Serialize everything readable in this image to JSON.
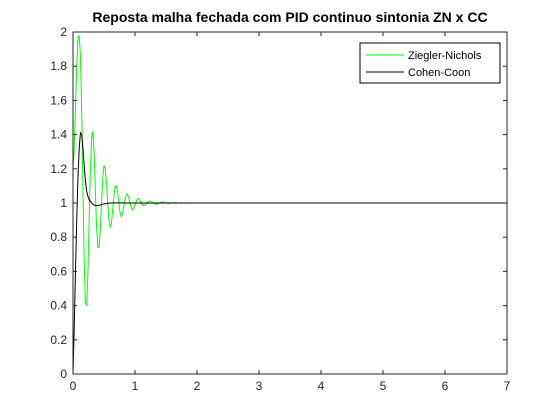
{
  "chart_data": {
    "type": "line",
    "title": "Reposta malha fechada com PID continuo sintonia ZN x CC",
    "xlabel": "",
    "ylabel": "",
    "xlim": [
      0,
      7
    ],
    "ylim": [
      0,
      2
    ],
    "grid": false,
    "legend_position": "top-right",
    "x_ticks": [
      "0",
      "1",
      "2",
      "3",
      "4",
      "5",
      "6",
      "7"
    ],
    "y_ticks": [
      "0",
      "0.2",
      "0.4",
      "0.6",
      "0.8",
      "1",
      "1.2",
      "1.4",
      "1.6",
      "1.8",
      "2"
    ],
    "series": [
      {
        "name": "Ziegler-Nichols",
        "color": "#00ff00",
        "x": [
          0,
          0.02,
          0.04,
          0.06,
          0.08,
          0.1,
          0.12,
          0.14,
          0.16,
          0.18,
          0.2,
          0.22,
          0.24,
          0.26,
          0.28,
          0.3,
          0.32,
          0.34,
          0.36,
          0.38,
          0.4,
          0.42,
          0.44,
          0.46,
          0.48,
          0.5,
          0.52,
          0.54,
          0.56,
          0.58,
          0.6,
          0.62,
          0.64,
          0.66,
          0.68,
          0.7,
          0.72,
          0.74,
          0.76,
          0.78,
          0.8,
          0.82,
          0.84,
          0.86,
          0.88,
          0.9,
          0.92,
          0.94,
          0.96,
          0.98,
          1.0,
          1.02,
          1.04,
          1.06,
          1.08,
          1.1,
          1.12,
          1.14,
          1.16,
          1.18,
          1.2,
          1.22,
          1.24,
          1.26,
          1.28,
          1.3,
          1.32,
          1.34,
          1.36,
          1.38,
          1.4,
          1.42,
          1.44,
          1.46,
          1.48,
          1.5,
          1.52,
          1.54,
          1.56,
          1.58,
          1.6,
          1.62,
          1.64,
          1.66,
          1.68,
          1.7,
          1.72,
          1.74,
          1.76,
          1.78,
          1.8,
          1.82,
          1.84,
          1.86,
          1.88,
          1.9,
          1.92,
          1.94,
          1.96,
          1.98,
          2.0,
          7.0
        ],
        "values": [
          1.2,
          1.32,
          1.56,
          1.8,
          1.96,
          1.98,
          1.86,
          1.54,
          1.1,
          0.66,
          0.42,
          0.4,
          0.58,
          0.9,
          1.18,
          1.38,
          1.42,
          1.3,
          1.08,
          0.86,
          0.74,
          0.74,
          0.84,
          1.0,
          1.14,
          1.22,
          1.2,
          1.12,
          1.0,
          0.9,
          0.86,
          0.88,
          0.96,
          1.04,
          1.1,
          1.1,
          1.06,
          1.0,
          0.94,
          0.92,
          0.94,
          0.98,
          1.02,
          1.05,
          1.05,
          1.03,
          1.0,
          0.97,
          0.96,
          0.97,
          0.99,
          1.01,
          1.025,
          1.025,
          1.015,
          1.0,
          0.99,
          0.985,
          0.988,
          0.995,
          1.0,
          1.008,
          1.012,
          1.01,
          1.005,
          1.0,
          0.995,
          0.993,
          0.995,
          0.998,
          1.0,
          1.004,
          1.006,
          1.005,
          1.002,
          1.0,
          0.998,
          0.997,
          0.998,
          0.999,
          1.0,
          1.002,
          1.003,
          1.002,
          1.001,
          1.0,
          0.999,
          0.999,
          0.999,
          1.0,
          1.0,
          1.001,
          1.001,
          1.001,
          1.0,
          1.0,
          1.0,
          1.0,
          1.0,
          1.0,
          1.0,
          1.0
        ]
      },
      {
        "name": "Cohen-Coon",
        "color": "#000000",
        "x": [
          0,
          0.02,
          0.04,
          0.06,
          0.08,
          0.1,
          0.12,
          0.14,
          0.16,
          0.18,
          0.2,
          0.22,
          0.24,
          0.26,
          0.28,
          0.3,
          0.33,
          0.36,
          0.4,
          0.45,
          0.5,
          0.55,
          0.6,
          0.7,
          0.8,
          0.9,
          1.0,
          1.2,
          1.5,
          7.0
        ],
        "values": [
          0,
          0.28,
          0.6,
          0.9,
          1.15,
          1.32,
          1.41,
          1.4,
          1.32,
          1.22,
          1.13,
          1.07,
          1.04,
          1.02,
          1.01,
          1.0,
          0.99,
          0.985,
          0.985,
          0.99,
          0.995,
          0.998,
          1.0,
          1.001,
          1.001,
          1.0,
          1.0,
          1.0,
          1.0,
          1.0
        ]
      }
    ]
  }
}
